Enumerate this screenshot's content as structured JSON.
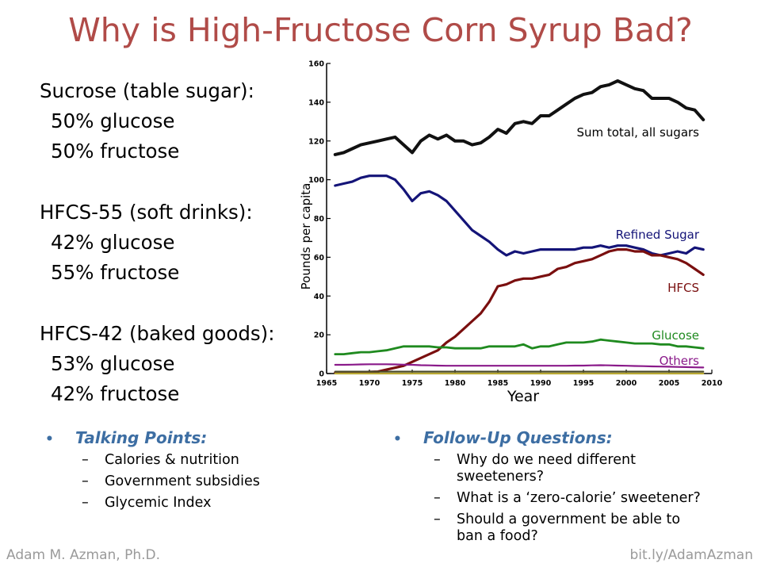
{
  "title": "Why is High-Fructose Corn Syrup Bad?",
  "sweeteners": [
    {
      "name": "Sucrose (table sugar):",
      "glucose": "50% glucose",
      "fructose": "50% fructose"
    },
    {
      "name": "HFCS-55 (soft drinks):",
      "glucose": "42% glucose",
      "fructose": "55% fructose"
    },
    {
      "name": "HFCS-42 (baked goods):",
      "glucose": "53% glucose",
      "fructose": "42% fructose"
    }
  ],
  "talking_points": {
    "heading": "Talking Points:",
    "items": [
      "Calories & nutrition",
      "Government subsidies",
      "Glycemic Index"
    ]
  },
  "follow_up": {
    "heading": "Follow-Up Questions:",
    "items": [
      {
        "line1": "Why do we need different",
        "line2": "sweeteners?"
      },
      {
        "line1": "What is a ‘zero-calorie’ sweetener?",
        "line2": ""
      },
      {
        "line1": "Should a government be able to",
        "line2": "ban a food?"
      }
    ]
  },
  "footer": {
    "left": "Adam M. Azman, Ph.D.",
    "right": "bit.ly/AdamAzman"
  },
  "colors": {
    "title": "#b04b48",
    "bullet_heading": "#3d6ea3"
  },
  "chart_data": {
    "type": "line",
    "xlabel": "Year",
    "ylabel": "Pounds per capita",
    "xlim": [
      1965,
      2010
    ],
    "ylim": [
      0,
      160
    ],
    "x_ticks": [
      1965,
      1970,
      1975,
      1980,
      1985,
      1990,
      1995,
      2000,
      2005,
      2010
    ],
    "y_ticks": [
      0,
      20,
      40,
      60,
      80,
      100,
      120,
      140,
      160
    ],
    "grid": false,
    "legend": "inline labels at right",
    "x": [
      1966,
      1967,
      1968,
      1969,
      1970,
      1971,
      1972,
      1973,
      1974,
      1975,
      1976,
      1977,
      1978,
      1979,
      1980,
      1981,
      1982,
      1983,
      1984,
      1985,
      1986,
      1987,
      1988,
      1989,
      1990,
      1991,
      1992,
      1993,
      1994,
      1995,
      1996,
      1997,
      1998,
      1999,
      2000,
      2001,
      2002,
      2003,
      2004,
      2005,
      2006,
      2007,
      2008,
      2009
    ],
    "series": [
      {
        "name": "Sum total, all sugars",
        "color": "#111111",
        "values": [
          113,
          114,
          116,
          118,
          119,
          120,
          121,
          122,
          118,
          114,
          120,
          123,
          121,
          123,
          120,
          120,
          118,
          119,
          122,
          126,
          124,
          129,
          130,
          129,
          133,
          133,
          136,
          139,
          142,
          144,
          145,
          148,
          149,
          151,
          149,
          147,
          146,
          142,
          142,
          142,
          140,
          137,
          136,
          131
        ]
      },
      {
        "name": "Refined Sugar",
        "color": "#141478",
        "values": [
          97,
          98,
          99,
          101,
          102,
          102,
          102,
          100,
          95,
          89,
          93,
          94,
          92,
          89,
          84,
          79,
          74,
          71,
          68,
          64,
          61,
          63,
          62,
          63,
          64,
          64,
          64,
          64,
          64,
          65,
          65,
          66,
          65,
          66,
          66,
          65,
          64,
          62,
          61,
          62,
          63,
          62,
          65,
          64
        ]
      },
      {
        "name": "HFCS",
        "color": "#7a0f0f",
        "values": [
          0.5,
          0.5,
          0.6,
          0.7,
          0.8,
          1,
          2,
          3,
          4,
          6,
          8,
          10,
          12,
          16,
          19,
          23,
          27,
          31,
          37,
          45,
          46,
          48,
          49,
          49,
          50,
          51,
          54,
          55,
          57,
          58,
          59,
          61,
          63,
          64,
          64,
          63,
          63,
          61,
          61,
          60,
          59,
          57,
          54,
          51
        ]
      },
      {
        "name": "Glucose",
        "color": "#1f8a1f",
        "values": [
          10,
          10,
          10.5,
          11,
          11,
          11.5,
          12,
          13,
          14,
          14,
          14,
          14,
          13.5,
          13.5,
          13,
          13,
          13,
          13,
          14,
          14,
          14,
          14,
          15,
          13,
          14,
          14,
          15,
          16,
          16,
          16,
          16.5,
          17.5,
          17,
          16.5,
          16,
          15.5,
          15.5,
          15.5,
          15,
          15,
          14,
          14,
          13.5,
          13
        ]
      },
      {
        "name": "Others",
        "color": "#8a1a8a",
        "values": [
          4.5,
          4.5,
          4.6,
          4.7,
          4.8,
          4.8,
          4.8,
          4.7,
          4.6,
          4.5,
          4.3,
          4.2,
          4.1,
          4,
          4,
          4,
          4,
          4,
          4,
          4,
          4,
          4,
          4,
          4,
          4,
          4,
          4,
          4,
          4.1,
          4.1,
          4.2,
          4.3,
          4.2,
          4.1,
          4,
          3.9,
          3.8,
          3.7,
          3.6,
          3.5,
          3.4,
          3.3,
          3.2,
          3.1
        ]
      },
      {
        "name": "",
        "color": "#4a4a2a",
        "values": [
          1,
          1,
          1,
          1,
          1,
          1,
          1,
          1,
          1,
          1,
          1,
          1,
          1,
          1,
          1,
          1,
          1,
          1,
          1,
          1,
          1,
          1,
          1,
          1,
          1,
          1,
          1,
          1,
          1,
          1,
          1,
          1,
          1,
          1,
          1,
          1,
          1,
          1,
          1,
          1,
          1,
          1,
          1,
          1
        ]
      },
      {
        "name": "",
        "color": "#b8a832",
        "values": [
          0,
          0,
          0,
          0,
          0,
          0,
          0,
          0,
          0,
          0,
          0,
          0,
          0,
          0,
          0,
          0,
          0,
          0,
          0,
          0,
          0,
          0,
          0,
          0,
          0,
          0,
          0,
          0,
          0,
          0,
          0,
          0,
          0,
          0,
          0,
          0,
          0,
          0,
          0,
          0,
          0,
          0,
          0,
          0
        ]
      }
    ]
  }
}
